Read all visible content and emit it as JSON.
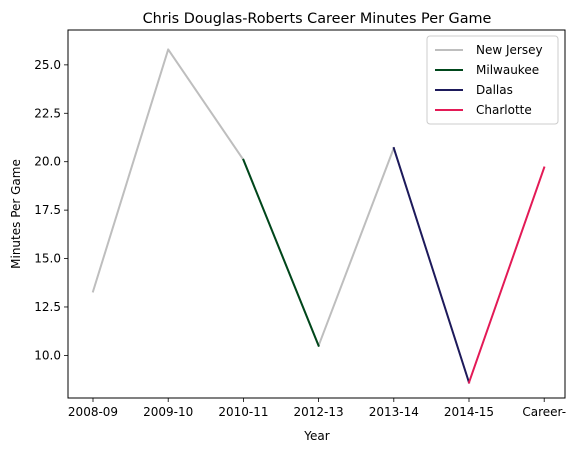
{
  "chart_data": {
    "type": "line",
    "title": "Chris Douglas-Roberts Career Minutes Per Game",
    "xlabel": "Year",
    "ylabel": "Minutes Per Game",
    "categories": [
      "2008-09",
      "2009-10",
      "2010-11",
      "2012-13",
      "2013-14",
      "2014-15",
      "Career-"
    ],
    "ylim": [
      7.8,
      26.8
    ],
    "yticks": [
      "10.0",
      "12.5",
      "15.0",
      "17.5",
      "20.0",
      "22.5",
      "25.0"
    ],
    "grid": false,
    "legend_position": "top-right",
    "series": [
      {
        "name": "New Jersey",
        "color": "#bebebe",
        "x": [
          "2008-09",
          "2009-10",
          "2010-11",
          "2012-13",
          "2013-14"
        ],
        "values": [
          13.3,
          25.8,
          20.1,
          10.5,
          20.7
        ]
      },
      {
        "name": "Milwaukee",
        "color": "#00471b",
        "x": [
          "2010-11",
          "2012-13"
        ],
        "values": [
          20.1,
          10.5
        ]
      },
      {
        "name": "Dallas",
        "color": "#1d1a5b",
        "x": [
          "2013-14",
          "2014-15"
        ],
        "values": [
          20.7,
          8.6
        ]
      },
      {
        "name": "Charlotte",
        "color": "#e31a56",
        "x": [
          "2014-15",
          "Career-"
        ],
        "values": [
          8.6,
          19.7
        ]
      }
    ]
  }
}
